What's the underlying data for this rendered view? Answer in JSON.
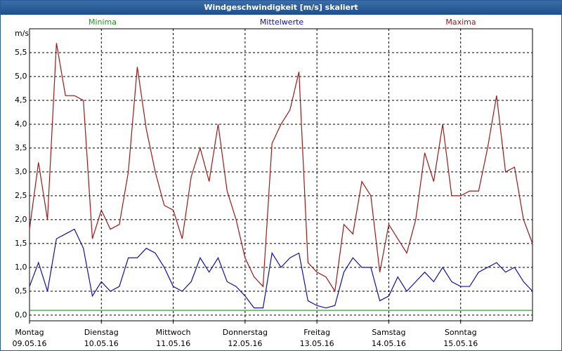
{
  "chart_data": {
    "type": "line",
    "title": "Windgeschwindigkeit [m/s] skaliert",
    "y_unit": "m/s",
    "x": [
      0,
      3,
      6,
      9,
      12,
      15,
      18,
      21,
      24,
      27,
      30,
      33,
      36,
      39,
      42,
      45,
      48,
      51,
      54,
      57,
      60,
      63,
      66,
      69,
      72,
      75,
      78,
      81,
      84,
      87,
      90,
      93,
      96,
      99,
      102,
      105,
      108,
      111,
      114,
      117,
      120,
      123,
      126,
      129,
      132,
      135,
      138,
      141,
      144,
      147,
      150,
      153,
      156,
      159,
      162,
      165,
      168
    ],
    "xlim": [
      0,
      168
    ],
    "xticks": [
      {
        "value": 0,
        "label": "Montag",
        "sublabel": "09.05.16"
      },
      {
        "value": 24,
        "label": "Dienstag",
        "sublabel": "10.05.16"
      },
      {
        "value": 48,
        "label": "Mittwoch",
        "sublabel": "11.05.16"
      },
      {
        "value": 72,
        "label": "Donnerstag",
        "sublabel": "12.05.16"
      },
      {
        "value": 96,
        "label": "Freitag",
        "sublabel": "13.05.16"
      },
      {
        "value": 120,
        "label": "Samstag",
        "sublabel": "14.05.16"
      },
      {
        "value": 144,
        "label": "Sonntag",
        "sublabel": "15.05.16"
      }
    ],
    "ylim": [
      -0.12,
      6.0
    ],
    "yticks": [
      {
        "value": 0,
        "label": "0,0"
      },
      {
        "value": 0.5,
        "label": "0,5"
      },
      {
        "value": 1,
        "label": "1,0"
      },
      {
        "value": 1.5,
        "label": "1,5"
      },
      {
        "value": 2,
        "label": "2,0"
      },
      {
        "value": 2.5,
        "label": "2,5"
      },
      {
        "value": 3,
        "label": "3,0"
      },
      {
        "value": 3.5,
        "label": "3,5"
      },
      {
        "value": 4,
        "label": "4,0"
      },
      {
        "value": 4.5,
        "label": "4,5"
      },
      {
        "value": 5,
        "label": "5,0"
      },
      {
        "value": 5.5,
        "label": "5,5"
      }
    ],
    "grid": true,
    "series": [
      {
        "name": "Minima",
        "color": "#1a9a1a",
        "values": [
          0.1,
          0.1,
          0.1,
          0.1,
          0.1,
          0.1,
          0.1,
          0.1,
          0.1,
          0.1,
          0.1,
          0.1,
          0.1,
          0.1,
          0.1,
          0.1,
          0.1,
          0.1,
          0.1,
          0.1,
          0.1,
          0.1,
          0.1,
          0.1,
          0.1,
          0.1,
          0.1,
          0.1,
          0.1,
          0.1,
          0.1,
          0.1,
          0.1,
          0.1,
          0.1,
          0.1,
          0.1,
          0.1,
          0.1,
          0.1,
          0.1,
          0.1,
          0.1,
          0.1,
          0.1,
          0.1,
          0.1,
          0.1,
          0.1,
          0.1,
          0.1,
          0.1,
          0.1,
          0.1,
          0.1,
          0.1,
          0.1
        ]
      },
      {
        "name": "Mittelwerte",
        "color": "#1010b0",
        "values": [
          0.6,
          1.1,
          0.5,
          1.6,
          1.7,
          1.8,
          1.4,
          0.4,
          0.7,
          0.5,
          0.6,
          1.2,
          1.2,
          1.4,
          1.3,
          1.0,
          0.6,
          0.5,
          0.7,
          1.2,
          0.9,
          1.2,
          0.7,
          0.6,
          0.4,
          0.15,
          0.15,
          1.3,
          1.0,
          1.2,
          1.3,
          0.3,
          0.2,
          0.15,
          0.2,
          0.9,
          1.2,
          1.0,
          1.0,
          0.3,
          0.4,
          0.8,
          0.5,
          0.7,
          0.9,
          0.7,
          1.0,
          0.7,
          0.6,
          0.6,
          0.9,
          1.0,
          1.1,
          0.9,
          1.0,
          0.7,
          0.5
        ]
      },
      {
        "name": "Maxima",
        "color": "#a01818",
        "values": [
          1.8,
          3.2,
          2.0,
          5.7,
          4.6,
          4.6,
          4.5,
          1.6,
          2.2,
          1.8,
          1.9,
          3.0,
          5.2,
          3.9,
          3.0,
          2.3,
          2.2,
          1.6,
          2.9,
          3.5,
          2.8,
          4.0,
          2.6,
          2.0,
          1.2,
          0.8,
          0.6,
          3.6,
          4.0,
          4.3,
          5.1,
          1.1,
          0.9,
          0.8,
          0.5,
          1.9,
          1.7,
          2.8,
          2.5,
          0.9,
          1.9,
          1.6,
          1.3,
          2.0,
          3.4,
          2.8,
          4.0,
          2.5,
          2.5,
          2.6,
          2.6,
          3.5,
          4.6,
          3.0,
          3.1,
          2.0,
          1.5
        ]
      }
    ]
  }
}
